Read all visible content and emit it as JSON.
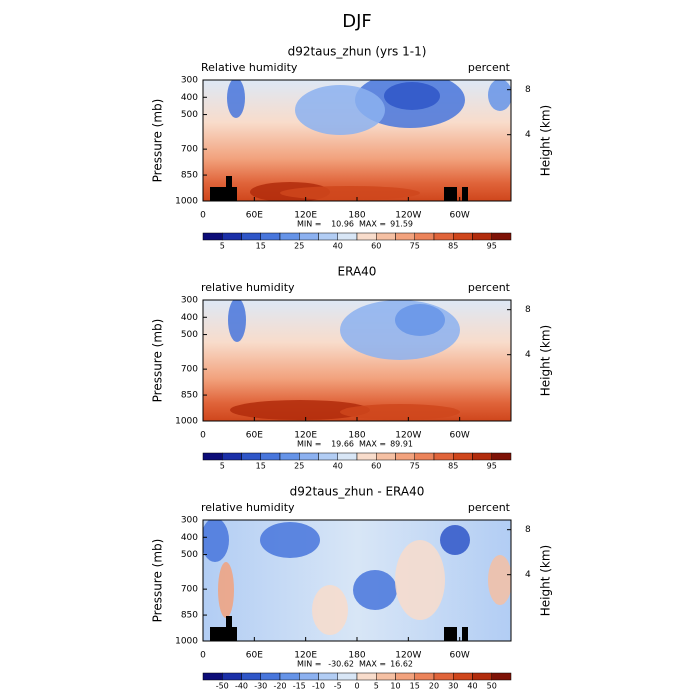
{
  "title": "DJF",
  "chart_data": [
    {
      "type": "contour",
      "title": "d92taus_zhun (yrs 1-1)",
      "left_label": "Relative humidity",
      "right_label": "percent",
      "ylabel": "Pressure (mb)",
      "y2label": "Height (km)",
      "xlim": [
        0,
        360
      ],
      "xticks": [
        0,
        {
          "value": 60,
          "label": "60E"
        },
        {
          "value": 120,
          "label": "120E"
        },
        180,
        {
          "value": 240,
          "label": "120W"
        },
        {
          "value": 300,
          "label": "60W"
        }
      ],
      "ylim": [
        1000,
        300
      ],
      "yticks": [
        300,
        400,
        500,
        700,
        850,
        1000
      ],
      "y2ticks": [
        8,
        4
      ],
      "min_label": "MIN =",
      "min": 10.96,
      "max_label": "MAX =",
      "max": 91.59,
      "colorbar": {
        "colors": [
          "#0c0c78",
          "#1a2fa8",
          "#2f56c8",
          "#4876dc",
          "#6694e8",
          "#8cb1f0",
          "#b2cdf4",
          "#d8e6f6",
          "#f8dccb",
          "#f5c0a3",
          "#f2a27d",
          "#eb835a",
          "#e0643a",
          "#cf461c",
          "#b22c0c",
          "#7e1206"
        ],
        "labels": [
          5,
          15,
          25,
          40,
          60,
          75,
          85,
          95
        ]
      }
    },
    {
      "type": "contour",
      "title": "ERA40",
      "left_label": "relative humidity",
      "right_label": "percent",
      "ylabel": "Pressure (mb)",
      "y2label": "Height (km)",
      "xlim": [
        0,
        360
      ],
      "xticks": [
        0,
        {
          "value": 60,
          "label": "60E"
        },
        {
          "value": 120,
          "label": "120E"
        },
        180,
        {
          "value": 240,
          "label": "120W"
        },
        {
          "value": 300,
          "label": "60W"
        }
      ],
      "ylim": [
        1000,
        300
      ],
      "yticks": [
        300,
        400,
        500,
        700,
        850,
        1000
      ],
      "y2ticks": [
        8,
        4
      ],
      "min_label": "MIN =",
      "min": 19.66,
      "max_label": "MAX =",
      "max": 89.91,
      "colorbar": {
        "colors": [
          "#0c0c78",
          "#1a2fa8",
          "#2f56c8",
          "#4876dc",
          "#6694e8",
          "#8cb1f0",
          "#b2cdf4",
          "#d8e6f6",
          "#f8dccb",
          "#f5c0a3",
          "#f2a27d",
          "#eb835a",
          "#e0643a",
          "#cf461c",
          "#b22c0c",
          "#7e1206"
        ],
        "labels": [
          5,
          15,
          25,
          40,
          60,
          75,
          85,
          95
        ]
      }
    },
    {
      "type": "contour",
      "title": "d92taus_zhun - ERA40",
      "left_label": "relative humidity",
      "right_label": "percent",
      "ylabel": "Pressure (mb)",
      "y2label": "Height (km)",
      "xlim": [
        0,
        360
      ],
      "xticks": [
        0,
        {
          "value": 60,
          "label": "60E"
        },
        {
          "value": 120,
          "label": "120E"
        },
        180,
        {
          "value": 240,
          "label": "120W"
        },
        {
          "value": 300,
          "label": "60W"
        }
      ],
      "ylim": [
        1000,
        300
      ],
      "yticks": [
        300,
        400,
        500,
        700,
        850,
        1000
      ],
      "y2ticks": [
        8,
        4
      ],
      "min_label": "MIN =",
      "min": -30.62,
      "max_label": "MAX =",
      "max": 16.62,
      "colorbar": {
        "colors": [
          "#0c0c78",
          "#1a2fa8",
          "#2f56c8",
          "#4876dc",
          "#6694e8",
          "#8cb1f0",
          "#b2cdf4",
          "#d8e6f6",
          "#f8dccb",
          "#f5c0a3",
          "#f2a27d",
          "#eb835a",
          "#e0643a",
          "#cf461c",
          "#b22c0c",
          "#7e1206"
        ],
        "labels": [
          -50,
          -40,
          -30,
          -20,
          -15,
          -10,
          -5,
          0,
          5,
          10,
          15,
          20,
          30,
          40,
          50
        ]
      }
    }
  ]
}
